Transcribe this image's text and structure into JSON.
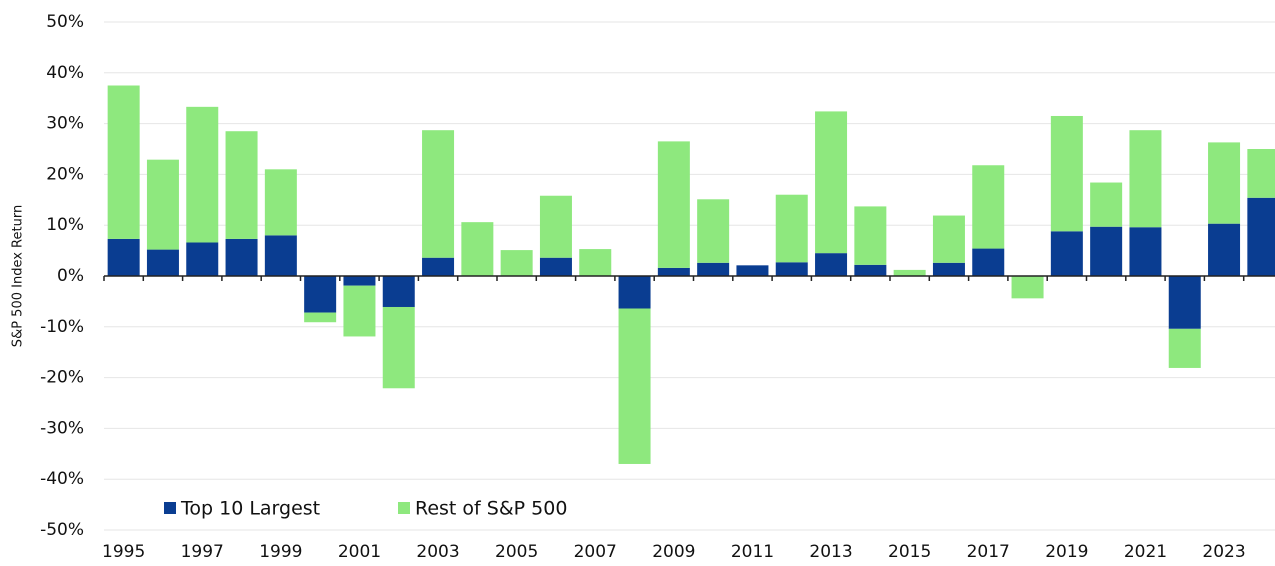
{
  "chart_data": {
    "type": "stacked_bar",
    "y_axis_label": "S&P 500 Index Return",
    "categories": [
      "1995",
      null,
      "1997",
      null,
      "1999",
      null,
      "2001",
      null,
      "2003",
      null,
      "2005",
      null,
      "2007",
      null,
      "2009",
      null,
      "2011",
      null,
      "2013",
      null,
      "2015",
      null,
      "2017",
      null,
      "2019",
      null,
      "2021",
      null,
      "2023",
      null
    ],
    "series": [
      {
        "name": "Top 10 Largest",
        "color": "#0a3d91",
        "values": [
          7.3,
          5.2,
          6.6,
          7.3,
          8.0,
          -7.2,
          -1.9,
          -6.1,
          3.6,
          0,
          0,
          3.6,
          0,
          -6.4,
          1.6,
          2.6,
          2.1,
          2.7,
          4.5,
          2.2,
          0,
          2.6,
          5.4,
          0,
          8.8,
          9.7,
          9.6,
          -10.4,
          10.3,
          15.4
        ]
      },
      {
        "name": "Rest of S&P 500",
        "color": "#8ee87e",
        "values": [
          30.2,
          17.7,
          26.7,
          21.2,
          13.0,
          -1.9,
          -10.0,
          -16.0,
          25.1,
          10.6,
          5.1,
          12.2,
          5.3,
          -30.6,
          24.9,
          12.5,
          0,
          13.3,
          27.9,
          11.5,
          1.2,
          9.3,
          16.4,
          -4.4,
          22.7,
          8.7,
          19.1,
          -7.7,
          16.0,
          9.6
        ]
      }
    ],
    "ylim": [
      -50,
      50
    ],
    "yticks": [
      {
        "value": -50,
        "label": "-50%"
      },
      {
        "value": -40,
        "label": "-40%"
      },
      {
        "value": -30,
        "label": "-30%"
      },
      {
        "value": -20,
        "label": "-20%"
      },
      {
        "value": -10,
        "label": "-10%"
      },
      {
        "value": 0,
        "label": "0%"
      },
      {
        "value": 10,
        "label": "10%"
      },
      {
        "value": 20,
        "label": "20%"
      },
      {
        "value": 30,
        "label": "30%"
      },
      {
        "value": 40,
        "label": "40%"
      },
      {
        "value": 50,
        "label": "50%"
      }
    ],
    "grid": true,
    "legend": "bottom-left"
  }
}
